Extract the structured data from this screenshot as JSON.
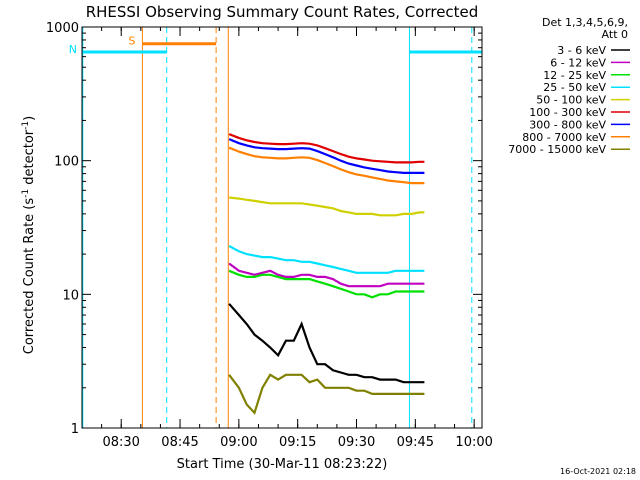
{
  "chart_data": {
    "type": "line",
    "title": "RHESSI Observing Summary Count Rates, Corrected",
    "xlabel": "Start Time (30-Mar-11 08:23:22)",
    "ylabel_main": "Corrected Count Rate (s",
    "ylabel_sup1": "-1",
    "ylabel_mid": " detector",
    "ylabel_sup2": "-1",
    "ylabel_end": ")",
    "yscale": "log",
    "ylim": [
      1,
      1000
    ],
    "xlim_minutes": [
      20,
      122
    ],
    "y_ticks": [
      {
        "value": 1,
        "label": "1"
      },
      {
        "value": 10,
        "label": "10"
      },
      {
        "value": 100,
        "label": "100"
      },
      {
        "value": 1000,
        "label": "1000"
      }
    ],
    "x_ticks": [
      {
        "minute": 30,
        "label": "08:30"
      },
      {
        "minute": 45,
        "label": "08:45"
      },
      {
        "minute": 60,
        "label": "09:00"
      },
      {
        "minute": 75,
        "label": "09:15"
      },
      {
        "minute": 90,
        "label": "09:30"
      },
      {
        "minute": 105,
        "label": "09:45"
      },
      {
        "minute": 120,
        "label": "10:00"
      }
    ],
    "legend_header": [
      "Det 1,3,4,5,6,9,",
      "Att 0"
    ],
    "legend_placement": "right",
    "data_interval_minutes": [
      57.4,
      107.3
    ],
    "series": [
      {
        "name": "3 - 6 keV",
        "color": "#000000",
        "points": [
          [
            57.5,
            8.5
          ],
          [
            60,
            7
          ],
          [
            62,
            6
          ],
          [
            64,
            5
          ],
          [
            66,
            4.5
          ],
          [
            68,
            4
          ],
          [
            70,
            3.5
          ],
          [
            72,
            4.5
          ],
          [
            74,
            4.5
          ],
          [
            76,
            6
          ],
          [
            78,
            4
          ],
          [
            80,
            3
          ],
          [
            82,
            3
          ],
          [
            84,
            2.7
          ],
          [
            86,
            2.6
          ],
          [
            88,
            2.5
          ],
          [
            90,
            2.5
          ],
          [
            92,
            2.4
          ],
          [
            94,
            2.4
          ],
          [
            96,
            2.3
          ],
          [
            98,
            2.3
          ],
          [
            100,
            2.3
          ],
          [
            102,
            2.2
          ],
          [
            104,
            2.2
          ],
          [
            106,
            2.2
          ],
          [
            107.3,
            2.2
          ]
        ]
      },
      {
        "name": "6 - 12 keV",
        "color": "#c000c0",
        "points": [
          [
            57.5,
            17
          ],
          [
            60,
            15
          ],
          [
            62,
            14.5
          ],
          [
            64,
            14
          ],
          [
            66,
            14.5
          ],
          [
            68,
            15
          ],
          [
            70,
            14
          ],
          [
            72,
            13.5
          ],
          [
            74,
            13.5
          ],
          [
            76,
            14
          ],
          [
            78,
            14
          ],
          [
            80,
            13.5
          ],
          [
            82,
            13.5
          ],
          [
            84,
            13
          ],
          [
            86,
            12
          ],
          [
            88,
            11.5
          ],
          [
            90,
            11.5
          ],
          [
            92,
            11.5
          ],
          [
            94,
            11.5
          ],
          [
            96,
            11.5
          ],
          [
            98,
            12
          ],
          [
            100,
            12
          ],
          [
            102,
            12
          ],
          [
            104,
            12
          ],
          [
            106,
            12
          ],
          [
            107.3,
            12
          ]
        ]
      },
      {
        "name": "12 - 25 keV",
        "color": "#00e000",
        "points": [
          [
            57.5,
            15
          ],
          [
            60,
            14
          ],
          [
            62,
            13.5
          ],
          [
            64,
            13.5
          ],
          [
            66,
            14
          ],
          [
            68,
            14
          ],
          [
            70,
            13.5
          ],
          [
            72,
            13
          ],
          [
            74,
            13
          ],
          [
            76,
            13
          ],
          [
            78,
            13
          ],
          [
            80,
            12.5
          ],
          [
            82,
            12
          ],
          [
            84,
            11.5
          ],
          [
            86,
            11
          ],
          [
            88,
            10.5
          ],
          [
            90,
            10
          ],
          [
            92,
            10
          ],
          [
            94,
            9.5
          ],
          [
            96,
            10
          ],
          [
            98,
            10
          ],
          [
            100,
            10.5
          ],
          [
            102,
            10.5
          ],
          [
            104,
            10.5
          ],
          [
            106,
            10.5
          ],
          [
            107.3,
            10.5
          ]
        ]
      },
      {
        "name": "25 - 50 keV",
        "color": "#00e0ff",
        "points": [
          [
            57.5,
            23
          ],
          [
            60,
            21
          ],
          [
            62,
            20
          ],
          [
            64,
            19.5
          ],
          [
            66,
            19
          ],
          [
            68,
            19
          ],
          [
            70,
            18.5
          ],
          [
            72,
            18
          ],
          [
            74,
            18
          ],
          [
            76,
            17.5
          ],
          [
            78,
            17.5
          ],
          [
            80,
            17
          ],
          [
            82,
            16.5
          ],
          [
            84,
            16
          ],
          [
            86,
            15.5
          ],
          [
            88,
            15
          ],
          [
            90,
            14.5
          ],
          [
            92,
            14.5
          ],
          [
            94,
            14.5
          ],
          [
            96,
            14.5
          ],
          [
            98,
            14.5
          ],
          [
            100,
            15
          ],
          [
            102,
            15
          ],
          [
            104,
            15
          ],
          [
            106,
            15
          ],
          [
            107.3,
            15
          ]
        ]
      },
      {
        "name": "50 - 100 keV",
        "color": "#d0d000",
        "points": [
          [
            57.5,
            53
          ],
          [
            60,
            52
          ],
          [
            62,
            51
          ],
          [
            64,
            50
          ],
          [
            66,
            49
          ],
          [
            68,
            48
          ],
          [
            70,
            48
          ],
          [
            72,
            48
          ],
          [
            74,
            48
          ],
          [
            76,
            48
          ],
          [
            78,
            47
          ],
          [
            80,
            46
          ],
          [
            82,
            45
          ],
          [
            84,
            44
          ],
          [
            86,
            42
          ],
          [
            88,
            41
          ],
          [
            90,
            40
          ],
          [
            92,
            40
          ],
          [
            94,
            40
          ],
          [
            96,
            39
          ],
          [
            98,
            39
          ],
          [
            100,
            39
          ],
          [
            102,
            40
          ],
          [
            104,
            40
          ],
          [
            106,
            41
          ],
          [
            107.3,
            41
          ]
        ]
      },
      {
        "name": "100 - 300 keV",
        "color": "#e00000",
        "points": [
          [
            57.5,
            158
          ],
          [
            60,
            148
          ],
          [
            62,
            142
          ],
          [
            64,
            138
          ],
          [
            66,
            135
          ],
          [
            68,
            134
          ],
          [
            70,
            133
          ],
          [
            72,
            133
          ],
          [
            74,
            134
          ],
          [
            76,
            135
          ],
          [
            78,
            134
          ],
          [
            80,
            130
          ],
          [
            82,
            124
          ],
          [
            84,
            118
          ],
          [
            86,
            112
          ],
          [
            88,
            107
          ],
          [
            90,
            104
          ],
          [
            92,
            102
          ],
          [
            94,
            100
          ],
          [
            96,
            99
          ],
          [
            98,
            98
          ],
          [
            100,
            97
          ],
          [
            102,
            97
          ],
          [
            104,
            97
          ],
          [
            106,
            98
          ],
          [
            107.3,
            98
          ]
        ]
      },
      {
        "name": "300 - 800 keV",
        "color": "#0000ff",
        "points": [
          [
            57.5,
            145
          ],
          [
            60,
            135
          ],
          [
            62,
            130
          ],
          [
            64,
            126
          ],
          [
            66,
            124
          ],
          [
            68,
            123
          ],
          [
            70,
            122
          ],
          [
            72,
            122
          ],
          [
            74,
            123
          ],
          [
            76,
            124
          ],
          [
            78,
            123
          ],
          [
            80,
            118
          ],
          [
            82,
            112
          ],
          [
            84,
            106
          ],
          [
            86,
            100
          ],
          [
            88,
            95
          ],
          [
            90,
            92
          ],
          [
            92,
            89
          ],
          [
            94,
            87
          ],
          [
            96,
            85
          ],
          [
            98,
            83
          ],
          [
            100,
            82
          ],
          [
            102,
            81
          ],
          [
            104,
            81
          ],
          [
            106,
            81
          ],
          [
            107.3,
            81
          ]
        ]
      },
      {
        "name": "800 - 7000 keV",
        "color": "#ff8000",
        "points": [
          [
            57.5,
            125
          ],
          [
            60,
            117
          ],
          [
            62,
            112
          ],
          [
            64,
            108
          ],
          [
            66,
            106
          ],
          [
            68,
            105
          ],
          [
            70,
            104
          ],
          [
            72,
            104
          ],
          [
            74,
            105
          ],
          [
            76,
            106
          ],
          [
            78,
            105
          ],
          [
            80,
            101
          ],
          [
            82,
            96
          ],
          [
            84,
            91
          ],
          [
            86,
            86
          ],
          [
            88,
            82
          ],
          [
            90,
            79
          ],
          [
            92,
            77
          ],
          [
            94,
            75
          ],
          [
            96,
            73
          ],
          [
            98,
            71
          ],
          [
            100,
            70
          ],
          [
            102,
            69
          ],
          [
            104,
            68
          ],
          [
            106,
            68
          ],
          [
            107.3,
            68
          ]
        ]
      },
      {
        "name": "7000 - 15000 keV",
        "color": "#808000",
        "points": [
          [
            57.5,
            2.5
          ],
          [
            60,
            2
          ],
          [
            62,
            1.5
          ],
          [
            64,
            1.3
          ],
          [
            66,
            2
          ],
          [
            68,
            2.5
          ],
          [
            70,
            2.3
          ],
          [
            72,
            2.5
          ],
          [
            74,
            2.5
          ],
          [
            76,
            2.5
          ],
          [
            78,
            2.2
          ],
          [
            80,
            2.3
          ],
          [
            82,
            2
          ],
          [
            84,
            2
          ],
          [
            86,
            2
          ],
          [
            88,
            2
          ],
          [
            90,
            1.9
          ],
          [
            92,
            1.9
          ],
          [
            94,
            1.8
          ],
          [
            96,
            1.8
          ],
          [
            98,
            1.8
          ],
          [
            100,
            1.8
          ],
          [
            102,
            1.8
          ],
          [
            104,
            1.8
          ],
          [
            106,
            1.8
          ],
          [
            107.3,
            1.8
          ]
        ]
      }
    ],
    "markers": [
      {
        "type": "solid",
        "minute": 20.2,
        "color": "#00e0ff"
      },
      {
        "type": "solid",
        "minute": 35.4,
        "color": "#ff8000"
      },
      {
        "type": "dashed",
        "minute": 41.6,
        "color": "#00e0ff"
      },
      {
        "type": "dashed",
        "minute": 54.2,
        "color": "#ff8000"
      },
      {
        "type": "solid",
        "minute": 57.3,
        "color": "#ff8000"
      },
      {
        "type": "solid",
        "minute": 103.5,
        "color": "#00e0ff"
      },
      {
        "type": "dashed",
        "minute": 119.4,
        "color": "#00e0ff"
      }
    ],
    "flag_bars": [
      {
        "label": "S",
        "start_minute": 35.4,
        "end_minute": 54.2,
        "value": 750,
        "color": "#ff8000"
      },
      {
        "label": "N",
        "start_minute": 20.2,
        "end_minute": 41.6,
        "value": 650,
        "color": "#00e0ff"
      },
      {
        "label": "",
        "start_minute": 103.5,
        "end_minute": 122,
        "value": 650,
        "color": "#00e0ff"
      }
    ]
  },
  "footer": {
    "timestamp": "16-Oct-2021 02:18"
  }
}
